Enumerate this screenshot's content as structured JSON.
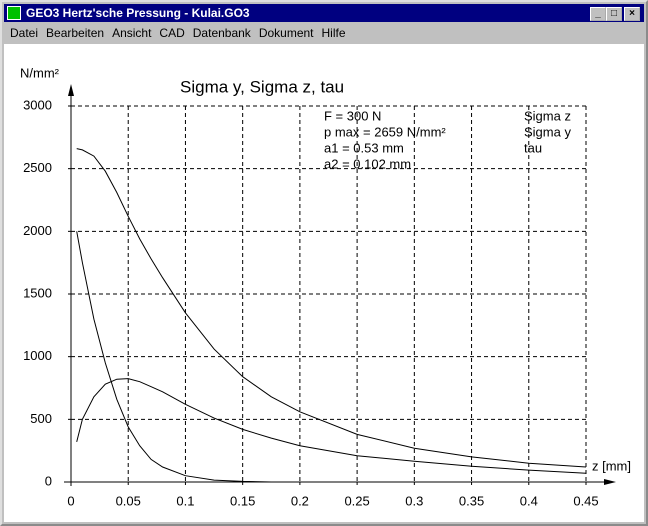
{
  "window": {
    "title": "GEO3  Hertz'sche Pressung  -  Kulai.GO3"
  },
  "menu": [
    "Datei",
    "Bearbeiten",
    "Ansicht",
    "CAD",
    "Datenbank",
    "Dokument",
    "Hilfe"
  ],
  "chart_data": {
    "type": "line",
    "title": "Sigma y, Sigma z, tau",
    "y_label": "N/mm²",
    "x_label": "z [mm]",
    "annotations": [
      "F = 300 N",
      "p max = 2659 N/mm²",
      "a1 = 0.53 mm",
      "a2 = 0.102 mm"
    ],
    "x": [
      0.005,
      0.01,
      0.02,
      0.03,
      0.04,
      0.05,
      0.06,
      0.07,
      0.08,
      0.1,
      0.125,
      0.15,
      0.175,
      0.2,
      0.25,
      0.3,
      0.35,
      0.4,
      0.45
    ],
    "series": [
      {
        "name": "Sigma z",
        "color": "#000000",
        "values": [
          2660,
          2650,
          2600,
          2480,
          2310,
          2120,
          1940,
          1780,
          1630,
          1350,
          1060,
          840,
          680,
          560,
          380,
          270,
          200,
          150,
          120
        ]
      },
      {
        "name": "Sigma y",
        "color": "#000000",
        "values": [
          2000,
          1750,
          1300,
          950,
          660,
          440,
          290,
          180,
          120,
          50,
          15,
          5,
          0,
          0,
          0,
          0,
          0,
          0,
          0
        ]
      },
      {
        "name": "tau",
        "color": "#000000",
        "values": [
          320,
          500,
          680,
          780,
          820,
          825,
          800,
          760,
          720,
          620,
          510,
          420,
          350,
          290,
          210,
          165,
          125,
          95,
          70
        ]
      }
    ],
    "xlim": [
      0,
      0.45
    ],
    "xticks": [
      0,
      0.05,
      0.1,
      0.15,
      0.2,
      0.25,
      0.3,
      0.35,
      0.4,
      0.45
    ],
    "ylim": [
      0,
      3000
    ],
    "yticks": [
      0,
      500,
      1000,
      1500,
      2000,
      2500,
      3000
    ],
    "grid": true
  }
}
